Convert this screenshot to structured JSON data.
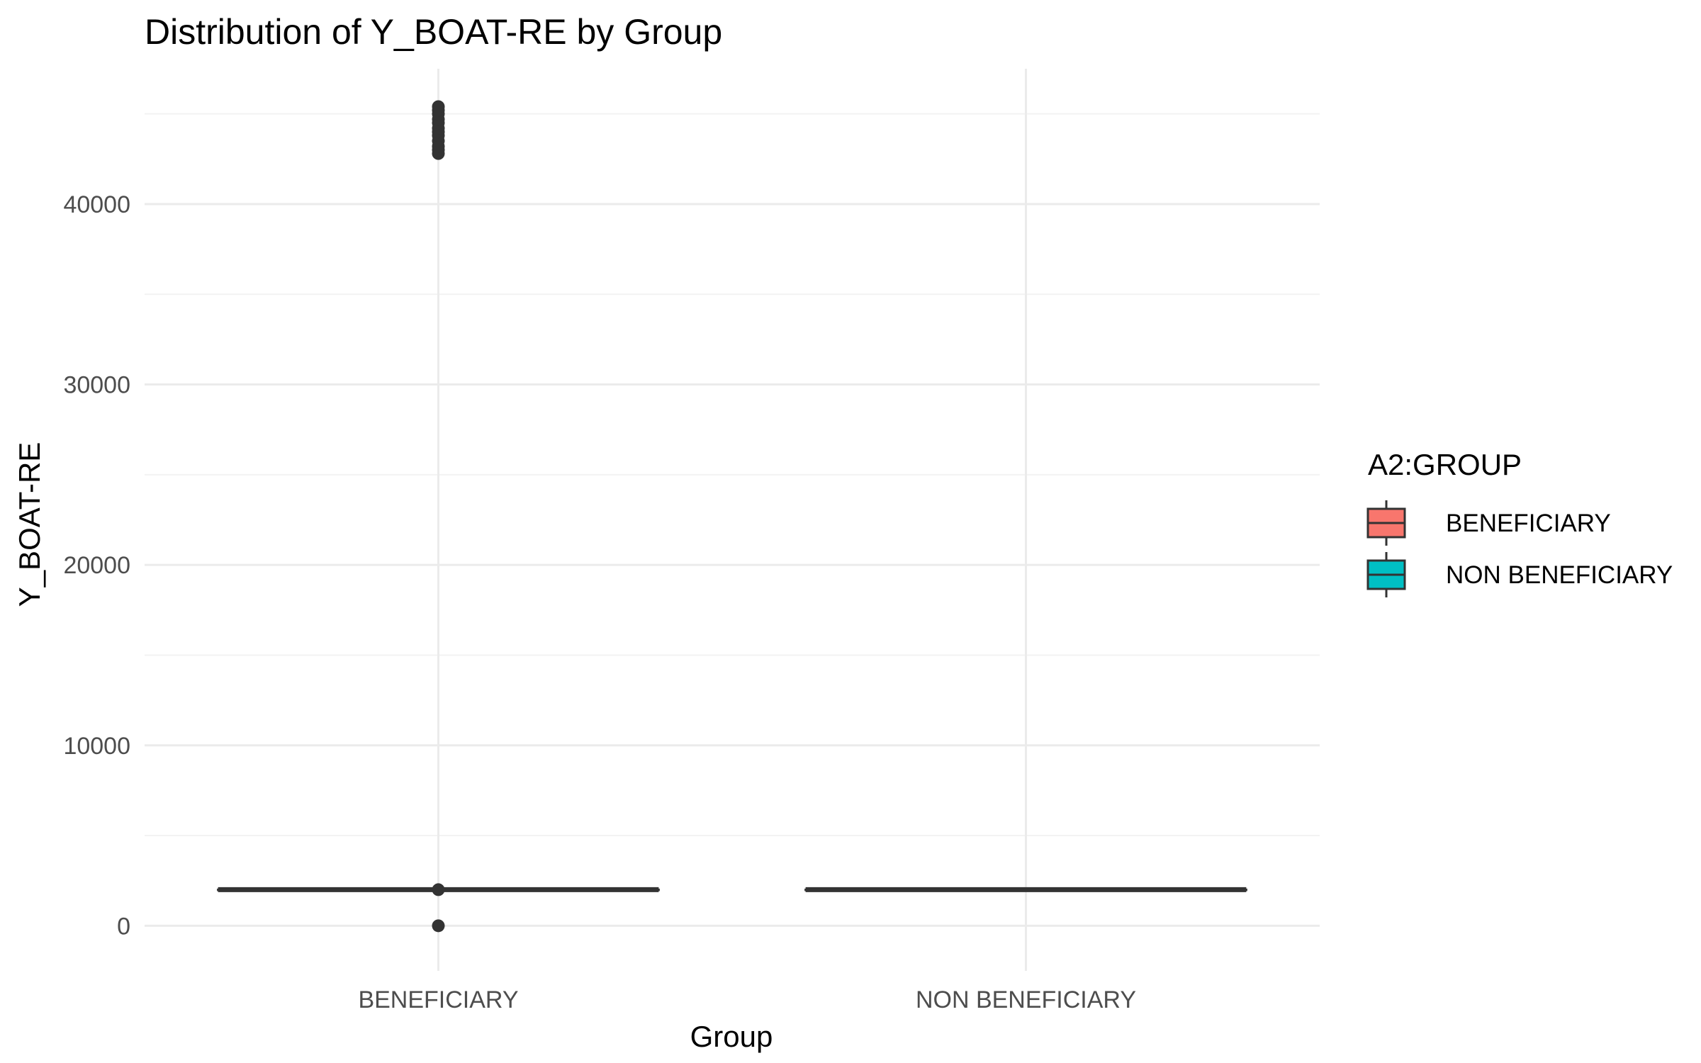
{
  "chart_data": {
    "type": "boxplot",
    "title": "Distribution of Y_BOAT-RE by Group",
    "xlabel": "Group",
    "ylabel": "Y_BOAT-RE",
    "categories": [
      "BENEFICIARY",
      "NON BENEFICIARY"
    ],
    "ylim": [
      -2500,
      47500
    ],
    "yticks": [
      0,
      10000,
      20000,
      30000,
      40000
    ],
    "ytick_labels": [
      "0",
      "10000",
      "20000",
      "30000",
      "40000"
    ],
    "grid": true,
    "legend": {
      "title": "A2:GROUP",
      "position": "right",
      "entries": [
        {
          "label": "BENEFICIARY",
          "color": "#F8766D"
        },
        {
          "label": "NON BENEFICIARY",
          "color": "#00BFC4"
        }
      ]
    },
    "series": [
      {
        "category": "BENEFICIARY",
        "color": "#F8766D",
        "q1": 2000,
        "median": 2000,
        "q3": 2000,
        "whisker_low": 2000,
        "whisker_high": 2000,
        "outliers": [
          0,
          2000,
          42800,
          43000,
          43200,
          43500,
          43800,
          44000,
          44200,
          44500,
          44700,
          45000,
          45200,
          45400
        ]
      },
      {
        "category": "NON BENEFICIARY",
        "color": "#00BFC4",
        "q1": 2000,
        "median": 2000,
        "q3": 2000,
        "whisker_low": 2000,
        "whisker_high": 2000,
        "outliers": []
      }
    ]
  }
}
